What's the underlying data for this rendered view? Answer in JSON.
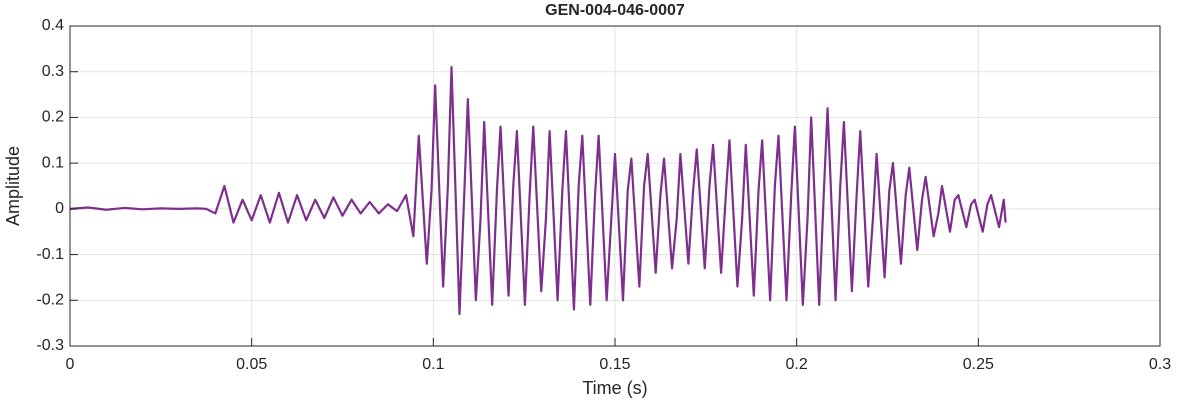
{
  "chart_data": {
    "type": "line",
    "title": "GEN-004-046-0007",
    "x_label": "Time (s)",
    "y_label": "Amplitude",
    "color": "#7e2f8e",
    "grid": true,
    "xlim": [
      0,
      0.3
    ],
    "xticks": [
      0,
      0.05,
      0.1,
      0.15,
      0.2,
      0.25,
      0.3
    ],
    "ylim": [
      -0.3,
      0.4
    ],
    "yticks": [
      -0.3,
      -0.2,
      -0.1,
      0,
      0.1,
      0.2,
      0.3,
      0.4
    ],
    "x": [
      0,
      0.005,
      0.01,
      0.015,
      0.02,
      0.025,
      0.03,
      0.035,
      0.0375,
      0.04,
      0.0425,
      0.045,
      0.0475,
      0.05,
      0.0525,
      0.055,
      0.0575,
      0.06,
      0.0625,
      0.065,
      0.0675,
      0.07,
      0.0725,
      0.075,
      0.0775,
      0.08,
      0.0825,
      0.085,
      0.0875,
      0.09,
      0.0925,
      0.0945,
      0.096,
      0.0982,
      0.0995,
      0.1005,
      0.1027,
      0.104,
      0.105,
      0.1072,
      0.1085,
      0.1095,
      0.1117,
      0.113,
      0.114,
      0.1162,
      0.1175,
      0.1185,
      0.1207,
      0.122,
      0.123,
      0.1252,
      0.1265,
      0.1275,
      0.1297,
      0.131,
      0.132,
      0.1342,
      0.1355,
      0.1365,
      0.1387,
      0.14,
      0.141,
      0.1432,
      0.1445,
      0.1455,
      0.1477,
      0.149,
      0.15,
      0.1522,
      0.1535,
      0.1545,
      0.1567,
      0.158,
      0.159,
      0.1612,
      0.1625,
      0.1635,
      0.1657,
      0.167,
      0.168,
      0.1702,
      0.1715,
      0.1725,
      0.1747,
      0.176,
      0.177,
      0.1792,
      0.1805,
      0.1815,
      0.1837,
      0.185,
      0.186,
      0.1882,
      0.1895,
      0.1905,
      0.1927,
      0.194,
      0.195,
      0.1972,
      0.1985,
      0.1995,
      0.2017,
      0.203,
      0.204,
      0.2062,
      0.2075,
      0.2085,
      0.2107,
      0.212,
      0.213,
      0.2152,
      0.2165,
      0.2175,
      0.2197,
      0.221,
      0.222,
      0.2242,
      0.2255,
      0.2265,
      0.2287,
      0.23,
      0.231,
      0.2332,
      0.2345,
      0.2355,
      0.2377,
      0.239,
      0.24,
      0.2422,
      0.2435,
      0.2445,
      0.2467,
      0.248,
      0.249,
      0.2512,
      0.2525,
      0.2535,
      0.2557,
      0.257,
      0.2575
    ],
    "values": [
      0,
      0.003,
      -0.002,
      0.002,
      -0.001,
      0.001,
      0,
      0.001,
      0,
      -0.01,
      0.05,
      -0.03,
      0.02,
      -0.025,
      0.03,
      -0.03,
      0.035,
      -0.03,
      0.03,
      -0.025,
      0.02,
      -0.02,
      0.025,
      -0.015,
      0.02,
      -0.01,
      0.015,
      -0.01,
      0.01,
      -0.005,
      0.03,
      -0.06,
      0.16,
      -0.12,
      0.04,
      0.27,
      -0.17,
      0.05,
      0.31,
      -0.23,
      0.03,
      0.24,
      -0.2,
      -0.02,
      0.19,
      -0.21,
      0.04,
      0.18,
      -0.19,
      0.05,
      0.17,
      -0.21,
      0.03,
      0.18,
      -0.18,
      -0.02,
      0.17,
      -0.2,
      0.04,
      0.17,
      -0.22,
      0.05,
      0.16,
      -0.21,
      0.03,
      0.16,
      -0.2,
      -0.02,
      0.12,
      -0.2,
      0.04,
      0.11,
      -0.17,
      0.05,
      0.12,
      -0.14,
      0.03,
      0.11,
      -0.13,
      -0.02,
      0.12,
      -0.12,
      0.04,
      0.13,
      -0.13,
      0.05,
      0.14,
      -0.14,
      0.03,
      0.15,
      -0.17,
      -0.02,
      0.14,
      -0.19,
      0.04,
      0.15,
      -0.2,
      0.05,
      0.16,
      -0.2,
      0.03,
      0.18,
      -0.21,
      -0.02,
      0.2,
      -0.21,
      0.04,
      0.22,
      -0.2,
      0.05,
      0.19,
      -0.18,
      0.03,
      0.17,
      -0.17,
      -0.02,
      0.12,
      -0.15,
      0.04,
      0.1,
      -0.12,
      0.03,
      0.09,
      -0.09,
      0.02,
      0.07,
      -0.06,
      -0.01,
      0.05,
      -0.05,
      0.02,
      0.03,
      -0.04,
      0.01,
      0.02,
      -0.05,
      0.01,
      0.03,
      -0.04,
      0.02,
      -0.03
    ]
  }
}
